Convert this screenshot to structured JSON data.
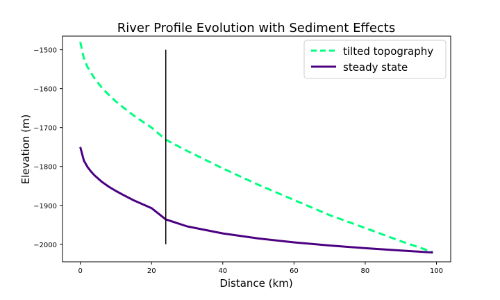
{
  "chart_data": {
    "type": "line",
    "title": "River Profile Evolution with Sediment Effects",
    "xlabel": "Distance (km)",
    "ylabel": "Elevation (m)",
    "xlim": [
      -5,
      104
    ],
    "ylim": [
      -2045,
      -1465
    ],
    "xticks": [
      0,
      20,
      40,
      60,
      80,
      100
    ],
    "yticks": [
      -2000,
      -1900,
      -1800,
      -1700,
      -1600,
      -1500
    ],
    "grid": false,
    "legend_position": "top-right",
    "series": [
      {
        "name": "tilted topography",
        "color": "#00ff7f",
        "style": "dashed",
        "x": [
          0,
          1,
          2,
          4,
          6,
          8,
          10,
          12,
          15,
          18,
          20,
          24,
          30,
          40,
          50,
          60,
          70,
          80,
          90,
          99
        ],
        "y": [
          -1480,
          -1522,
          -1544,
          -1574,
          -1597,
          -1616,
          -1633,
          -1648,
          -1669,
          -1688,
          -1700,
          -1731,
          -1760,
          -1805,
          -1847,
          -1886,
          -1925,
          -1958,
          -1992,
          -2020
        ]
      },
      {
        "name": "steady state",
        "color": "#4b0082",
        "style": "solid",
        "x": [
          0,
          1,
          2,
          3,
          4,
          6,
          8,
          10,
          12,
          15,
          18,
          20,
          24,
          30,
          40,
          50,
          60,
          70,
          80,
          90,
          99
        ],
        "y": [
          -1750,
          -1785,
          -1801,
          -1813,
          -1823,
          -1839,
          -1852,
          -1863,
          -1873,
          -1887,
          -1899,
          -1907,
          -1936,
          -1954,
          -1972,
          -1985,
          -1995,
          -2003,
          -2010,
          -2016,
          -2021
        ]
      }
    ],
    "vline": {
      "x": 24,
      "y_range": [
        -2000,
        -1500
      ],
      "color": "#000000"
    }
  }
}
